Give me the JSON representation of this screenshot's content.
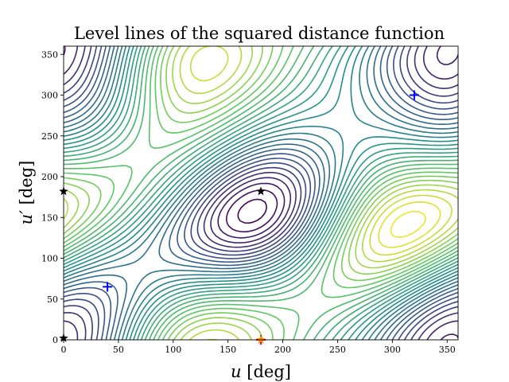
{
  "chart_data": {
    "type": "contour",
    "title": "Level lines of the squared distance function",
    "xlabel": {
      "symbol": "u",
      "unit": " [deg]"
    },
    "ylabel": {
      "symbol": "u′",
      "unit": " [deg]"
    },
    "xlim": [
      0,
      360
    ],
    "ylim": [
      0,
      360
    ],
    "xticks": [
      0,
      50,
      100,
      150,
      200,
      250,
      300,
      350
    ],
    "yticks": [
      0,
      50,
      100,
      150,
      200,
      250,
      300,
      350
    ],
    "grid": false,
    "colormap": [
      "#440154",
      "#3b528b",
      "#21918c",
      "#5ec962",
      "#fde725"
    ],
    "levels": 30,
    "markers": [
      {
        "type": "minimum",
        "symbol": "+",
        "color": "#0000ff",
        "x": 40,
        "y": 65
      },
      {
        "type": "minimum",
        "symbol": "+",
        "color": "#0000ff",
        "x": 320,
        "y": 300
      },
      {
        "type": "saddle",
        "symbol": "*",
        "color": "#000000",
        "x": 180,
        "y": 182
      },
      {
        "type": "saddle",
        "symbol": "*",
        "color": "#000000",
        "x": 0,
        "y": 182
      },
      {
        "type": "saddle",
        "symbol": "*",
        "color": "#000000",
        "x": 0,
        "y": 2
      },
      {
        "type": "maximum",
        "symbol": "+",
        "color": "#ff0000",
        "x": 180,
        "y": 0
      },
      {
        "type": "maximum",
        "symbol": "*",
        "color": "#ff8c00",
        "x": 180,
        "y": 0
      }
    ]
  }
}
